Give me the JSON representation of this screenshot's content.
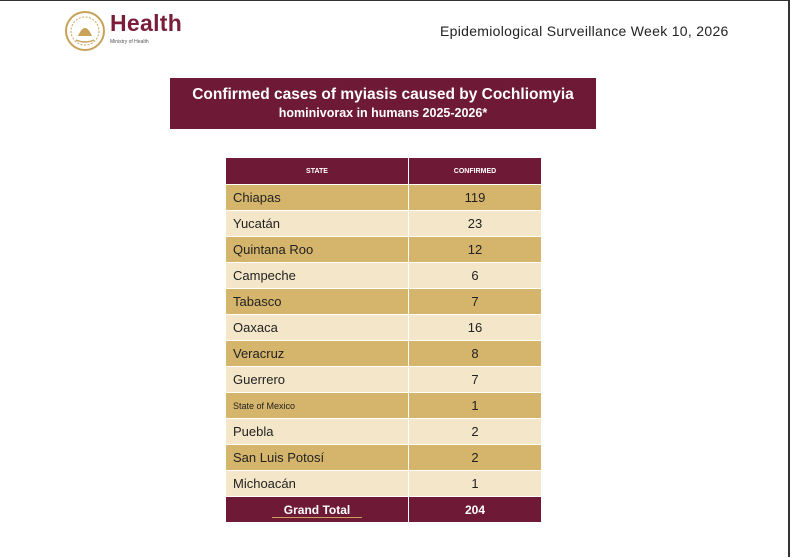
{
  "header": {
    "brand": "Health",
    "subbrand": "Ministry of Health",
    "report": "Epidemiological Surveillance Week 10, 2026"
  },
  "title": {
    "line1": "Confirmed cases of myiasis caused by Cochliomyia",
    "line2": "hominivorax in humans 2025-2026*"
  },
  "table": {
    "columns": [
      "STATE",
      "CONFIRMED"
    ],
    "rows": [
      [
        "Chiapas",
        119
      ],
      [
        "Yucatán",
        23
      ],
      [
        "Quintana Roo",
        12
      ],
      [
        "Campeche",
        6
      ],
      [
        "Tabasco",
        7
      ],
      [
        "Oaxaca",
        16
      ],
      [
        "Veracruz",
        8
      ],
      [
        "Guerrero",
        7
      ],
      [
        "State of Mexico",
        1
      ],
      [
        "Puebla",
        2
      ],
      [
        "San Luis Potosí",
        2
      ],
      [
        "Michoacán",
        1
      ]
    ],
    "total": [
      "Grand Total",
      204
    ]
  }
}
